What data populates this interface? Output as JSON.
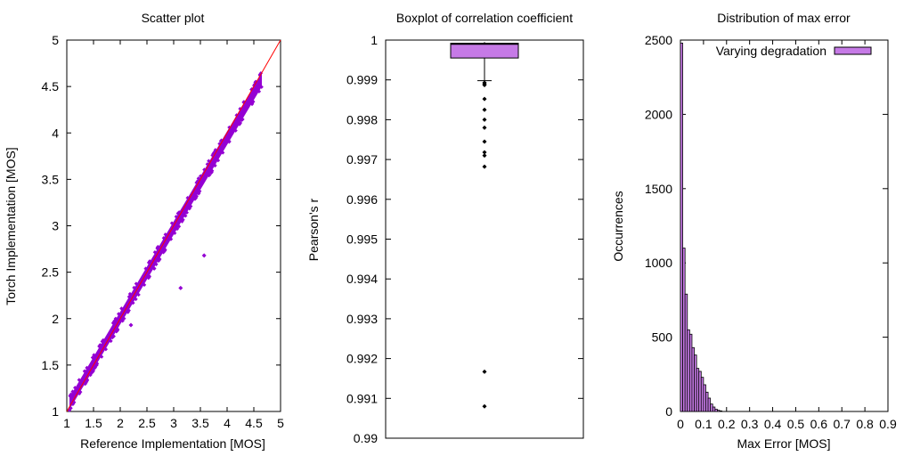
{
  "colors": {
    "series": "#9400d3",
    "bar_fill": "#c67ae6",
    "diagonal": "#ff0000",
    "outlier": "#000000",
    "axis": "#000000"
  },
  "chart_data": [
    {
      "type": "scatter",
      "title": "Scatter plot",
      "xlabel": "Reference Implementation [MOS]",
      "ylabel": "Torch Implementation [MOS]",
      "xlim": [
        1,
        5
      ],
      "ylim": [
        1,
        5
      ],
      "xticks": [
        "1",
        "1.5",
        "2",
        "2.5",
        "3",
        "3.5",
        "4",
        "4.5",
        "5"
      ],
      "yticks": [
        "1",
        "1.5",
        "2",
        "2.5",
        "3",
        "3.5",
        "4",
        "4.5",
        "5"
      ],
      "grid": false,
      "reference_line": "y = x",
      "band": {
        "x_range": [
          1.05,
          4.65
        ],
        "lower_offset_at_start": -0.03,
        "lower_offset_at_end": -0.15,
        "upper_offset_at_start": 0.1,
        "upper_offset_at_end": 0.0
      },
      "outliers": [
        {
          "x": 2.2,
          "y": 1.93
        },
        {
          "x": 3.13,
          "y": 2.33
        },
        {
          "x": 3.57,
          "y": 2.68
        }
      ]
    },
    {
      "type": "box",
      "title": "Boxplot of correlation coefficient",
      "xlabel": "",
      "ylabel": "Pearson's r",
      "ylim": [
        0.99,
        1.0
      ],
      "yticks": [
        "0.99",
        "0.991",
        "0.992",
        "0.993",
        "0.994",
        "0.995",
        "0.996",
        "0.997",
        "0.998",
        "0.999",
        "1"
      ],
      "grid": false,
      "box": {
        "q1": 0.99955,
        "median": 0.9999,
        "q3": 0.99992,
        "whisker_low": 0.99898,
        "whisker_high": 0.99995
      },
      "outliers": [
        0.99893,
        0.9989,
        0.99887,
        0.99852,
        0.99825,
        0.998,
        0.9978,
        0.99745,
        0.99718,
        0.9971,
        0.99682,
        0.99167,
        0.9908
      ]
    },
    {
      "type": "bar",
      "title": "Distribution of max error",
      "xlabel": "Max Error [MOS]",
      "ylabel": "Occurrences",
      "xlim": [
        0,
        0.9
      ],
      "ylim": [
        0,
        2500
      ],
      "xticks": [
        "0",
        "0.1",
        "0.2",
        "0.3",
        "0.4",
        "0.5",
        "0.6",
        "0.7",
        "0.8",
        "0.9"
      ],
      "yticks": [
        "0",
        "500",
        "1000",
        "1500",
        "2000",
        "2500"
      ],
      "grid": false,
      "legend": {
        "entries": [
          "Varying degradation"
        ],
        "position": "top-right"
      },
      "bin_width": 0.01,
      "bin_starts": [
        0.0,
        0.01,
        0.02,
        0.03,
        0.04,
        0.05,
        0.06,
        0.07,
        0.08,
        0.09,
        0.1,
        0.11,
        0.12,
        0.13,
        0.14,
        0.15,
        0.16,
        0.17
      ],
      "values": [
        2480,
        1100,
        790,
        550,
        520,
        430,
        380,
        290,
        270,
        230,
        180,
        130,
        90,
        50,
        30,
        15,
        8,
        4
      ]
    }
  ]
}
